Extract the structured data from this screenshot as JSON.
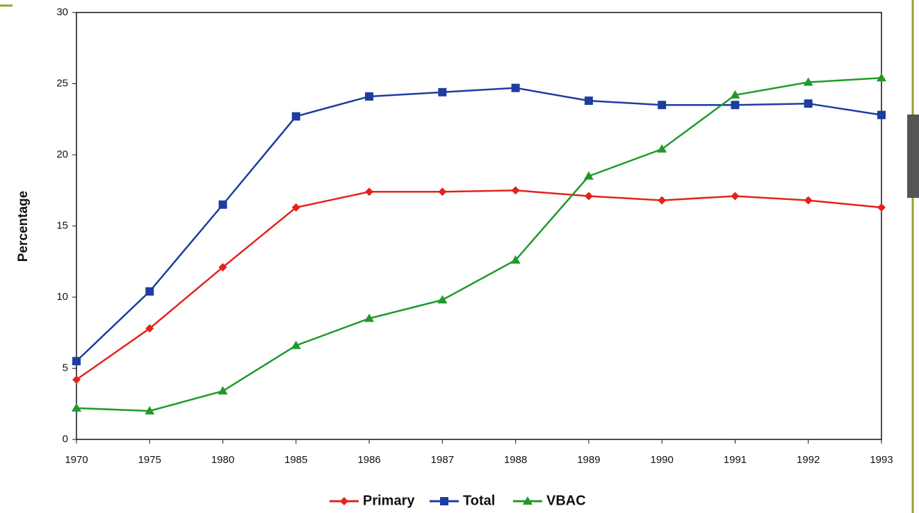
{
  "chart_data": {
    "type": "line",
    "y_label": "Percentage",
    "categories": [
      "1970",
      "1975",
      "1980",
      "1985",
      "1986",
      "1987",
      "1988",
      "1989",
      "1990",
      "1991",
      "1992",
      "1993"
    ],
    "series": [
      {
        "name": "Primary",
        "color": "#e3221b",
        "marker": "diamond",
        "values": [
          4.2,
          7.8,
          12.1,
          16.3,
          17.4,
          17.4,
          17.5,
          17.1,
          16.8,
          17.1,
          16.8,
          16.3
        ]
      },
      {
        "name": "Total",
        "color": "#1c3c9e",
        "marker": "square",
        "values": [
          5.5,
          10.4,
          16.5,
          22.7,
          24.1,
          24.4,
          24.7,
          23.8,
          23.5,
          23.5,
          23.6,
          22.8
        ]
      },
      {
        "name": "VBAC",
        "color": "#1f9a2a",
        "marker": "triangle",
        "values": [
          2.2,
          2.0,
          3.4,
          6.6,
          8.5,
          9.8,
          12.6,
          18.5,
          20.4,
          24.2,
          25.1,
          25.4
        ]
      }
    ],
    "ylim": [
      0,
      30
    ],
    "yticks": [
      0,
      5,
      10,
      15,
      20,
      25,
      30
    ],
    "legend": "bottom"
  }
}
